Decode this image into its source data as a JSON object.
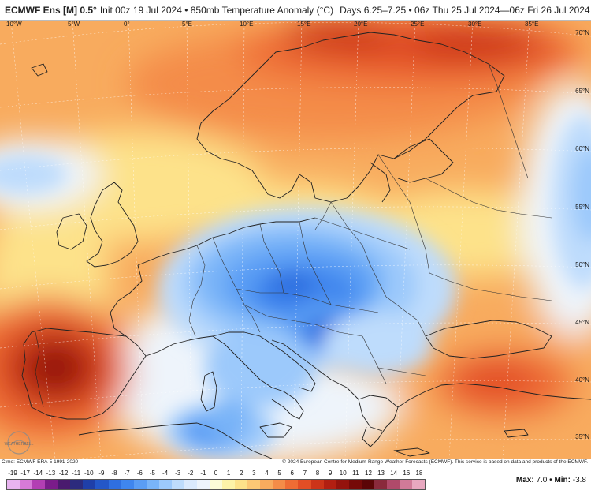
{
  "header": {
    "model": "ECMWF Ens [M] 0.5°",
    "init": "Init 00z 19 Jul 2024 • 850mb Temperature Anomaly (°C)",
    "valid": "Days 6.25–7.25 • 06z Thu 25 Jul 2024—06z Fri 26 Jul 2024"
  },
  "lon_labels": [
    "10°W",
    "5°W",
    "0°",
    "5°E",
    "10°E",
    "15°E",
    "20°E",
    "25°E",
    "30°E",
    "35°E"
  ],
  "lat_labels": [
    "70°N",
    "65°N",
    "60°N",
    "55°N",
    "50°N",
    "45°N",
    "40°N",
    "35°N"
  ],
  "credits": {
    "left": "Clmo: ECMWF ERA-5 1991-2020",
    "right": "© 2024 European Centre for Medium-Range Weather Forecasts (ECMWF). This service is based on data and products of the ECMWF."
  },
  "colorbar": {
    "ticks": [
      "-19",
      "-17",
      "-14",
      "-13",
      "-12",
      "-11",
      "-10",
      "-9",
      "-8",
      "-7",
      "-6",
      "-5",
      "-4",
      "-3",
      "-2",
      "-1",
      "0",
      "1",
      "2",
      "3",
      "4",
      "5",
      "6",
      "7",
      "8",
      "9",
      "10",
      "11",
      "12",
      "13",
      "14",
      "16",
      "18"
    ],
    "colors": [
      "#e8b4f0",
      "#d77ad8",
      "#b33fb3",
      "#7a1c8a",
      "#4a1a6e",
      "#2c2b7d",
      "#1f3fa8",
      "#2457c8",
      "#2f6fe0",
      "#3f86ee",
      "#5a9df4",
      "#79b4f8",
      "#9cc9fb",
      "#bedcfc",
      "#dbeafd",
      "#eef4fb",
      "#fbfbd8",
      "#fdf3a8",
      "#fde28a",
      "#fbc875",
      "#f8ab5e",
      "#f48c48",
      "#ee6c34",
      "#e24e25",
      "#cc3419",
      "#b21f12",
      "#94130d",
      "#760a08",
      "#5b0506",
      "#8a2a3c",
      "#b04a6a",
      "#d07a98",
      "#e8a8c0"
    ]
  },
  "stats": {
    "max_label": "Max:",
    "max": "7.0",
    "min_label": "Min:",
    "min": "-3.8",
    "sep": "•"
  },
  "logo": {
    "text": "WEATHERBELL"
  },
  "colors": {
    "warm_deep": "#b21f12",
    "warm": "#ee6c34",
    "warm_light": "#f8ab5e",
    "neutral_warm": "#fde28a",
    "neutral_cool": "#eef4fb",
    "cool": "#79b4f8",
    "cold": "#2f6fe0"
  }
}
